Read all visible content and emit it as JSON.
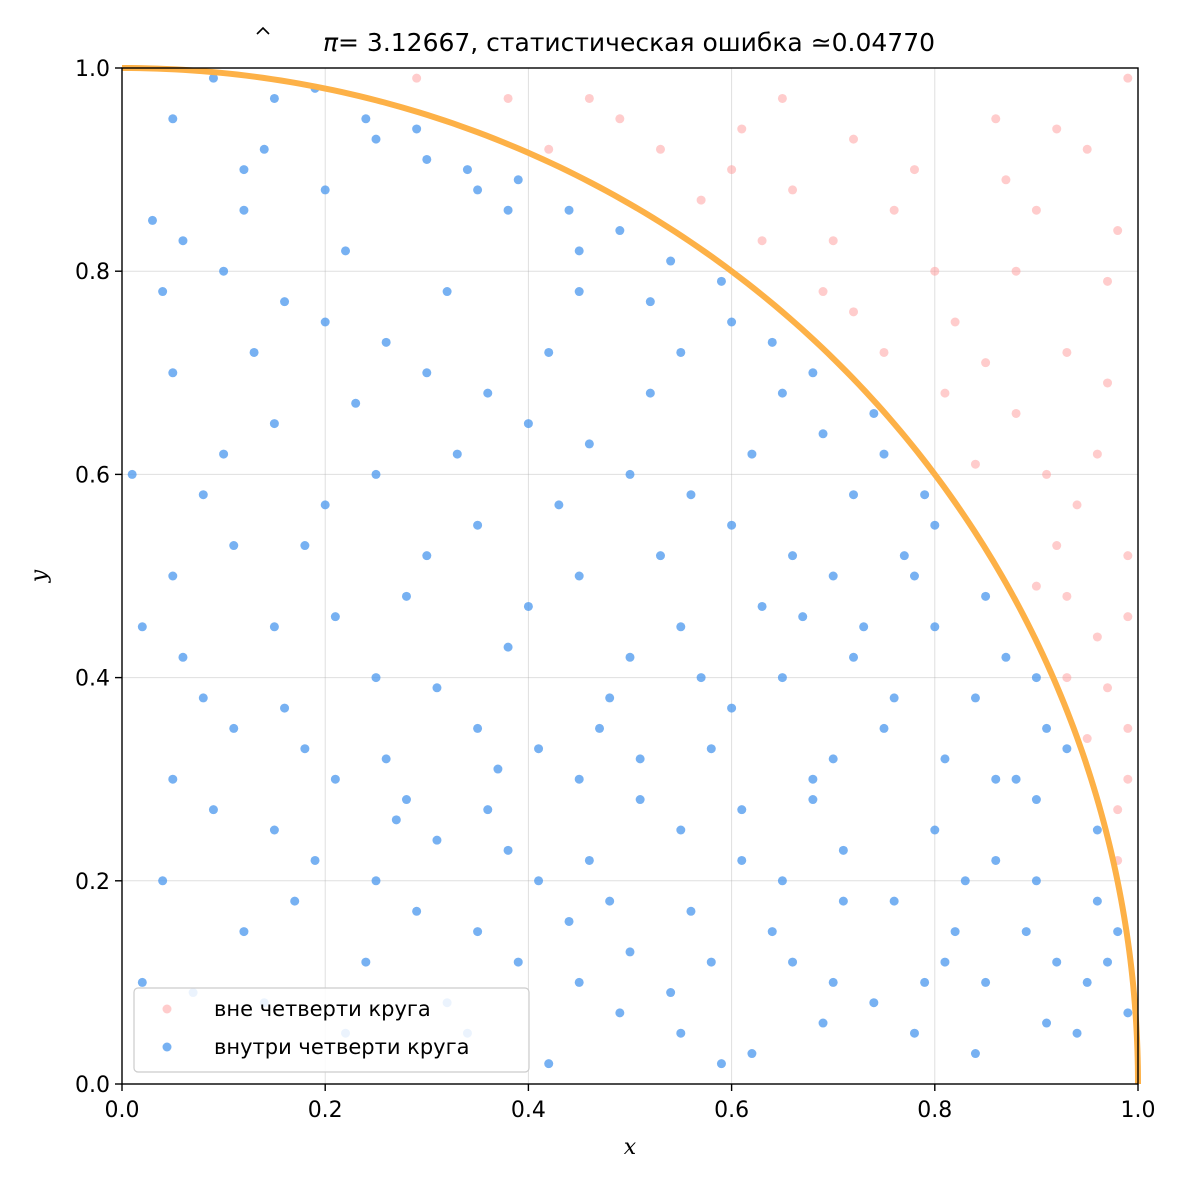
{
  "chart_data": {
    "type": "scatter",
    "title": {
      "pi_hat_symbol": "π",
      "estimate": "= 3.12667, статистическая ошибка ",
      "approx_symbol": "≃",
      "error": "0.04770"
    },
    "xlabel": "x",
    "ylabel": "y",
    "xlim": [
      0.0,
      1.0
    ],
    "ylim": [
      0.0,
      1.0
    ],
    "x_ticks": [
      "0.0",
      "0.2",
      "0.4",
      "0.6",
      "0.8",
      "1.0"
    ],
    "y_ticks": [
      "0.0",
      "0.2",
      "0.4",
      "0.6",
      "0.8",
      "1.0"
    ],
    "grid": true,
    "legend_position": "lower-left",
    "colors": {
      "outside": "#ff9a9a",
      "inside": "#4a97ee",
      "arc": "#fdb147"
    },
    "curve": {
      "name": "quarter-circle",
      "equation": "x^2 + y^2 = 1"
    },
    "series": [
      {
        "name": "вне четверти круга",
        "points": [
          [
            0.65,
            0.97
          ],
          [
            0.72,
            0.93
          ],
          [
            0.86,
            0.95
          ],
          [
            0.99,
            0.99
          ],
          [
            0.95,
            0.92
          ],
          [
            0.61,
            0.94
          ],
          [
            0.78,
            0.9
          ],
          [
            0.9,
            0.86
          ],
          [
            0.97,
            0.79
          ],
          [
            0.93,
            0.72
          ],
          [
            0.88,
            0.66
          ],
          [
            0.96,
            0.62
          ],
          [
            0.99,
            0.52
          ],
          [
            0.93,
            0.48
          ],
          [
            0.97,
            0.39
          ],
          [
            0.99,
            0.3
          ],
          [
            0.98,
            0.22
          ],
          [
            0.82,
            0.75
          ],
          [
            0.76,
            0.86
          ],
          [
            0.7,
            0.83
          ],
          [
            0.69,
            0.78
          ],
          [
            0.6,
            0.9
          ],
          [
            0.46,
            0.97
          ],
          [
            0.38,
            0.97
          ],
          [
            0.29,
            0.99
          ],
          [
            0.53,
            0.92
          ],
          [
            0.81,
            0.68
          ],
          [
            0.85,
            0.71
          ],
          [
            0.72,
            0.76
          ],
          [
            0.91,
            0.6
          ],
          [
            0.97,
            0.69
          ],
          [
            0.94,
            0.57
          ],
          [
            0.9,
            0.49
          ],
          [
            0.96,
            0.44
          ],
          [
            0.99,
            0.35
          ],
          [
            0.88,
            0.8
          ],
          [
            0.8,
            0.8
          ],
          [
            0.75,
            0.72
          ],
          [
            0.66,
            0.88
          ],
          [
            0.57,
            0.87
          ],
          [
            0.49,
            0.95
          ],
          [
            0.42,
            0.92
          ],
          [
            0.63,
            0.83
          ],
          [
            0.87,
            0.89
          ],
          [
            0.92,
            0.94
          ],
          [
            0.98,
            0.84
          ],
          [
            0.84,
            0.61
          ],
          [
            0.92,
            0.53
          ],
          [
            0.99,
            0.46
          ],
          [
            0.93,
            0.4
          ],
          [
            0.98,
            0.27
          ],
          [
            0.95,
            0.34
          ]
        ]
      },
      {
        "name": "внутри четверти круга",
        "points": [
          [
            0.05,
            0.95
          ],
          [
            0.12,
            0.9
          ],
          [
            0.2,
            0.88
          ],
          [
            0.3,
            0.91
          ],
          [
            0.38,
            0.86
          ],
          [
            0.45,
            0.82
          ],
          [
            0.52,
            0.77
          ],
          [
            0.6,
            0.75
          ],
          [
            0.68,
            0.7
          ],
          [
            0.75,
            0.62
          ],
          [
            0.8,
            0.55
          ],
          [
            0.85,
            0.48
          ],
          [
            0.9,
            0.4
          ],
          [
            0.93,
            0.33
          ],
          [
            0.96,
            0.25
          ],
          [
            0.98,
            0.15
          ],
          [
            0.99,
            0.07
          ],
          [
            0.1,
            0.8
          ],
          [
            0.2,
            0.75
          ],
          [
            0.3,
            0.7
          ],
          [
            0.4,
            0.65
          ],
          [
            0.5,
            0.6
          ],
          [
            0.6,
            0.55
          ],
          [
            0.7,
            0.5
          ],
          [
            0.8,
            0.45
          ],
          [
            0.88,
            0.3
          ],
          [
            0.9,
            0.2
          ],
          [
            0.85,
            0.1
          ],
          [
            0.05,
            0.7
          ],
          [
            0.15,
            0.65
          ],
          [
            0.25,
            0.6
          ],
          [
            0.35,
            0.55
          ],
          [
            0.45,
            0.5
          ],
          [
            0.55,
            0.45
          ],
          [
            0.65,
            0.4
          ],
          [
            0.75,
            0.35
          ],
          [
            0.8,
            0.25
          ],
          [
            0.82,
            0.15
          ],
          [
            0.78,
            0.05
          ],
          [
            0.05,
            0.5
          ],
          [
            0.15,
            0.45
          ],
          [
            0.25,
            0.4
          ],
          [
            0.35,
            0.35
          ],
          [
            0.45,
            0.3
          ],
          [
            0.55,
            0.25
          ],
          [
            0.65,
            0.2
          ],
          [
            0.7,
            0.1
          ],
          [
            0.62,
            0.03
          ],
          [
            0.05,
            0.3
          ],
          [
            0.15,
            0.25
          ],
          [
            0.25,
            0.2
          ],
          [
            0.35,
            0.15
          ],
          [
            0.45,
            0.1
          ],
          [
            0.55,
            0.05
          ],
          [
            0.02,
            0.1
          ],
          [
            0.12,
            0.15
          ],
          [
            0.22,
            0.05
          ],
          [
            0.32,
            0.08
          ],
          [
            0.42,
            0.02
          ],
          [
            0.5,
            0.13
          ],
          [
            0.08,
            0.38
          ],
          [
            0.18,
            0.33
          ],
          [
            0.28,
            0.28
          ],
          [
            0.38,
            0.23
          ],
          [
            0.48,
            0.18
          ],
          [
            0.58,
            0.12
          ],
          [
            0.68,
            0.3
          ],
          [
            0.72,
            0.42
          ],
          [
            0.62,
            0.62
          ],
          [
            0.52,
            0.68
          ],
          [
            0.42,
            0.72
          ],
          [
            0.32,
            0.78
          ],
          [
            0.22,
            0.82
          ],
          [
            0.12,
            0.86
          ],
          [
            0.03,
            0.85
          ],
          [
            0.08,
            0.58
          ],
          [
            0.18,
            0.53
          ],
          [
            0.28,
            0.48
          ],
          [
            0.38,
            0.43
          ],
          [
            0.48,
            0.38
          ],
          [
            0.58,
            0.33
          ],
          [
            0.68,
            0.28
          ],
          [
            0.76,
            0.18
          ],
          [
            0.86,
            0.22
          ],
          [
            0.92,
            0.12
          ],
          [
            0.94,
            0.05
          ],
          [
            0.15,
            0.97
          ],
          [
            0.25,
            0.93
          ],
          [
            0.35,
            0.88
          ],
          [
            0.45,
            0.78
          ],
          [
            0.55,
            0.72
          ],
          [
            0.65,
            0.68
          ],
          [
            0.72,
            0.58
          ],
          [
            0.78,
            0.5
          ],
          [
            0.84,
            0.38
          ],
          [
            0.9,
            0.28
          ],
          [
            0.04,
            0.2
          ],
          [
            0.14,
            0.08
          ],
          [
            0.24,
            0.12
          ],
          [
            0.34,
            0.05
          ],
          [
            0.44,
            0.16
          ],
          [
            0.54,
            0.09
          ],
          [
            0.64,
            0.15
          ],
          [
            0.74,
            0.08
          ],
          [
            0.84,
            0.03
          ],
          [
            0.1,
            0.62
          ],
          [
            0.2,
            0.57
          ],
          [
            0.3,
            0.52
          ],
          [
            0.4,
            0.47
          ],
          [
            0.5,
            0.42
          ],
          [
            0.6,
            0.37
          ],
          [
            0.7,
            0.32
          ],
          [
            0.06,
            0.42
          ],
          [
            0.16,
            0.37
          ],
          [
            0.26,
            0.32
          ],
          [
            0.36,
            0.27
          ],
          [
            0.46,
            0.22
          ],
          [
            0.56,
            0.17
          ],
          [
            0.66,
            0.12
          ],
          [
            0.13,
            0.72
          ],
          [
            0.23,
            0.67
          ],
          [
            0.33,
            0.62
          ],
          [
            0.43,
            0.57
          ],
          [
            0.53,
            0.52
          ],
          [
            0.63,
            0.47
          ],
          [
            0.73,
            0.45
          ],
          [
            0.83,
            0.2
          ],
          [
            0.87,
            0.42
          ],
          [
            0.79,
            0.58
          ],
          [
            0.69,
            0.64
          ],
          [
            0.59,
            0.79
          ],
          [
            0.49,
            0.84
          ],
          [
            0.39,
            0.89
          ],
          [
            0.29,
            0.94
          ],
          [
            0.19,
            0.98
          ],
          [
            0.09,
            0.99
          ],
          [
            0.01,
            0.6
          ],
          [
            0.11,
            0.53
          ],
          [
            0.21,
            0.46
          ],
          [
            0.31,
            0.39
          ],
          [
            0.41,
            0.33
          ],
          [
            0.51,
            0.28
          ],
          [
            0.61,
            0.22
          ],
          [
            0.71,
            0.18
          ],
          [
            0.81,
            0.12
          ],
          [
            0.91,
            0.06
          ],
          [
            0.96,
            0.18
          ],
          [
            0.07,
            0.09
          ],
          [
            0.17,
            0.18
          ],
          [
            0.27,
            0.26
          ],
          [
            0.37,
            0.31
          ],
          [
            0.47,
            0.35
          ],
          [
            0.57,
            0.4
          ],
          [
            0.67,
            0.46
          ],
          [
            0.77,
            0.52
          ],
          [
            0.74,
            0.66
          ],
          [
            0.64,
            0.73
          ],
          [
            0.54,
            0.81
          ],
          [
            0.44,
            0.86
          ],
          [
            0.34,
            0.9
          ],
          [
            0.24,
            0.95
          ],
          [
            0.14,
            0.92
          ],
          [
            0.04,
            0.78
          ],
          [
            0.02,
            0.45
          ],
          [
            0.09,
            0.27
          ],
          [
            0.19,
            0.22
          ],
          [
            0.29,
            0.17
          ],
          [
            0.39,
            0.12
          ],
          [
            0.49,
            0.07
          ],
          [
            0.59,
            0.02
          ],
          [
            0.69,
            0.06
          ],
          [
            0.79,
            0.1
          ],
          [
            0.89,
            0.15
          ],
          [
            0.95,
            0.1
          ],
          [
            0.86,
            0.3
          ],
          [
            0.76,
            0.38
          ],
          [
            0.66,
            0.52
          ],
          [
            0.56,
            0.58
          ],
          [
            0.46,
            0.63
          ],
          [
            0.36,
            0.68
          ],
          [
            0.26,
            0.73
          ],
          [
            0.16,
            0.77
          ],
          [
            0.06,
            0.83
          ],
          [
            0.11,
            0.35
          ],
          [
            0.21,
            0.3
          ],
          [
            0.31,
            0.24
          ],
          [
            0.41,
            0.2
          ],
          [
            0.51,
            0.32
          ],
          [
            0.61,
            0.27
          ],
          [
            0.71,
            0.23
          ],
          [
            0.81,
            0.32
          ],
          [
            0.91,
            0.35
          ],
          [
            0.97,
            0.12
          ]
        ]
      }
    ]
  }
}
